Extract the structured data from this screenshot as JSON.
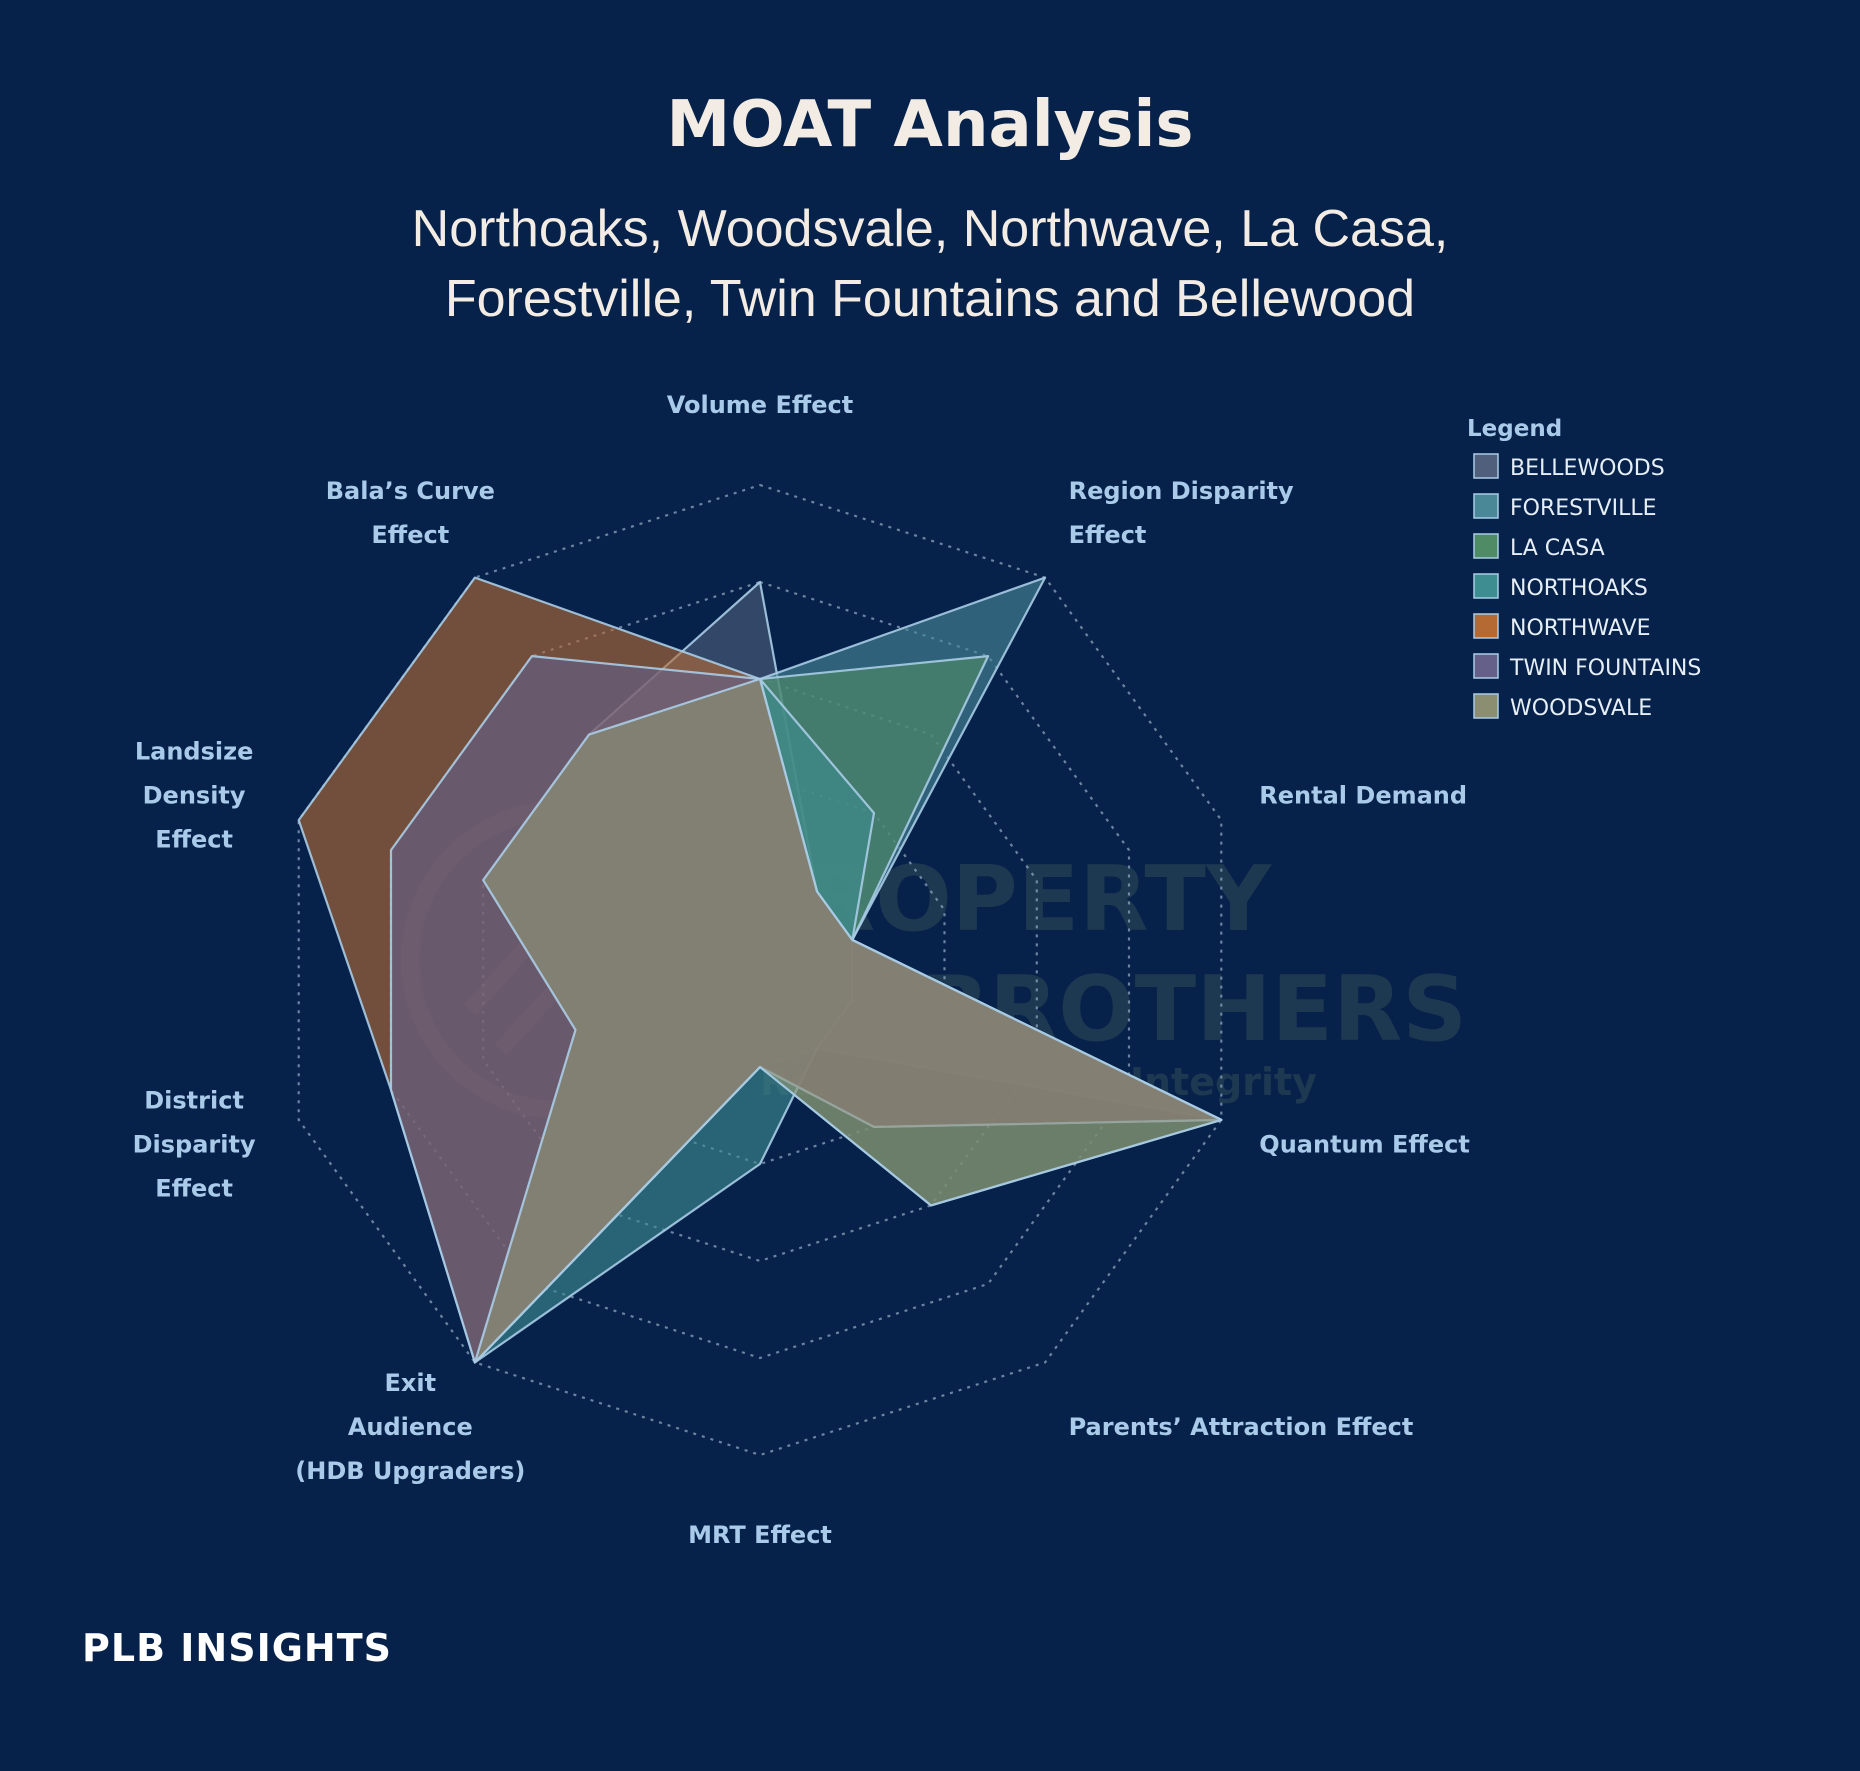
{
  "chart_data": {
    "type": "radar",
    "title": "MOAT Analysis",
    "subtitle_lines": [
      "Northoaks, Woodsvale, Northwave, La Casa,",
      "Forestville, Twin Fountains and Bellewood"
    ],
    "axes": [
      [
        "Volume Effect"
      ],
      [
        "Region Disparity",
        "Effect"
      ],
      [
        "Rental Demand"
      ],
      [
        "Quantum Effect"
      ],
      [
        "Parents’ Attraction Effect"
      ],
      [
        "MRT Effect"
      ],
      [
        "Exit",
        "Audience",
        "(HDB Upgraders)"
      ],
      [
        "District",
        "Disparity",
        "Effect"
      ],
      [
        "Landsize",
        "Density",
        "Effect"
      ],
      [
        "Bala’s Curve",
        "Effect"
      ]
    ],
    "rmax": 5,
    "grid_levels": [
      1,
      2,
      3,
      4,
      5
    ],
    "grid": true,
    "legend": {
      "title": "Legend",
      "position": "top-right"
    },
    "series": [
      {
        "name": "BELLEWOODS",
        "color": "#4f5f7c",
        "values": [
          4,
          1,
          1,
          5,
          1,
          1,
          5,
          2,
          3,
          3
        ]
      },
      {
        "name": "FORESTVILLE",
        "color": "#4a8898",
        "values": [
          3,
          5,
          1,
          5,
          1,
          1,
          5,
          2,
          3,
          3
        ]
      },
      {
        "name": "LA CASA",
        "color": "#4f8c66",
        "values": [
          3,
          4,
          1,
          5,
          3,
          1,
          5,
          2,
          3,
          3
        ]
      },
      {
        "name": "NORTHOAKS",
        "color": "#3e8d90",
        "values": [
          3,
          2,
          1,
          1,
          1,
          2,
          5,
          2,
          3,
          3
        ]
      },
      {
        "name": "NORTHWAVE",
        "color": "#b56a33",
        "values": [
          3,
          1,
          1,
          5,
          2,
          1,
          5,
          4,
          5,
          5
        ]
      },
      {
        "name": "TWIN FOUNTAINS",
        "color": "#64608a",
        "values": [
          3,
          1,
          1,
          5,
          2,
          1,
          5,
          4,
          4,
          4
        ]
      },
      {
        "name": "WOODSVALE",
        "color": "#8c8e72",
        "values": [
          3,
          1,
          1,
          5,
          3,
          1,
          5,
          2,
          3,
          3
        ]
      }
    ]
  },
  "watermark": {
    "line1": "PROPERTY",
    "line2": "LIMBROTHERS",
    "line3": "Real Estate With Integrity"
  },
  "brand": {
    "name": "PLB INSIGHTS"
  }
}
